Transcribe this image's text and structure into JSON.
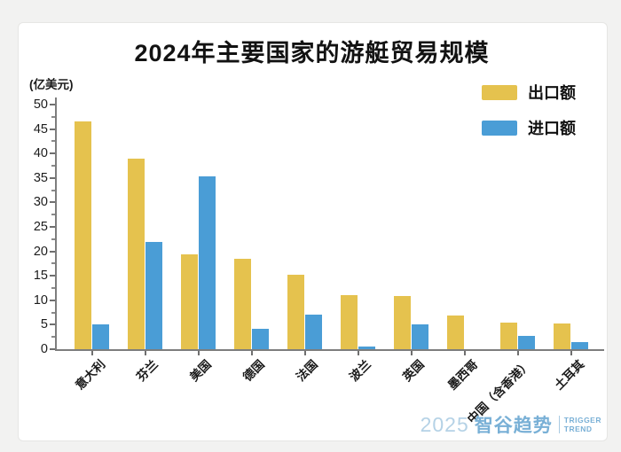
{
  "page": {
    "background_color": "#f2f2f1",
    "card_color": "#ffffff"
  },
  "corner_icon": {
    "colors": [
      "#2f72b0",
      "#4a93cc",
      "#e8c94f"
    ]
  },
  "footer": {
    "year": "2025",
    "brand": "智谷趋势",
    "tag_line1": "TRIGGER",
    "tag_line2": "TREND",
    "accent_color": "#79b0d6"
  },
  "chart_data": {
    "type": "bar",
    "title": "2024年主要国家的游艇贸易规模",
    "unit": "(亿美元)",
    "xlabel": "",
    "ylabel": "亿美元",
    "ylim": [
      0,
      50
    ],
    "ytick_step": 5,
    "grid": false,
    "legend_position": "top-right",
    "categories": [
      "意大利",
      "芬兰",
      "美国",
      "德国",
      "法国",
      "波兰",
      "英国",
      "墨西哥",
      "中国（含香港）",
      "土耳其"
    ],
    "series": [
      {
        "name": "出口额",
        "color": "#e5c24e",
        "values": [
          46.5,
          39,
          19.3,
          18.5,
          15.2,
          11,
          10.8,
          6.8,
          5.5,
          5.2
        ]
      },
      {
        "name": "进口额",
        "color": "#4a9dd6",
        "values": [
          5,
          22,
          35.4,
          4.2,
          7,
          0.5,
          5,
          0,
          2.8,
          1.4
        ]
      }
    ]
  }
}
